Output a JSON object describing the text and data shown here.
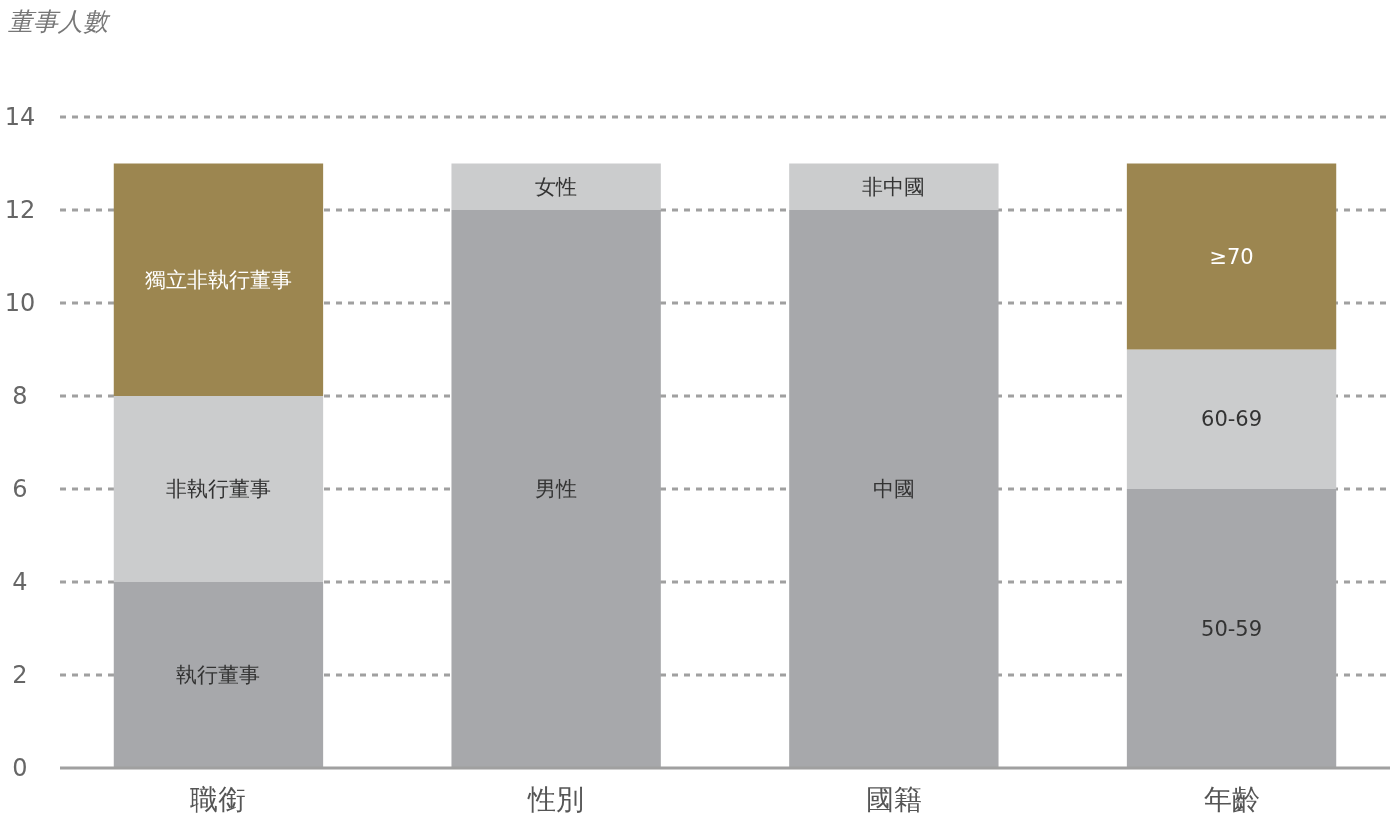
{
  "chart_data": {
    "type": "bar",
    "stacked": true,
    "ylabel": "董事人數",
    "categories": [
      "職銜",
      "性別",
      "國籍",
      "年齡"
    ],
    "series": [
      {
        "color": "#a7a8ab",
        "values": [
          4,
          12,
          12,
          6
        ],
        "value_labels": [
          "執行董事",
          "男性",
          "中國",
          "50-59"
        ]
      },
      {
        "color": "#cbcccd",
        "values": [
          4,
          1,
          1,
          3
        ],
        "value_labels": [
          "非執行董事",
          "女性",
          "非中國",
          "60-69"
        ]
      },
      {
        "color": "#9c8650",
        "values": [
          5,
          null,
          null,
          4
        ],
        "value_labels": [
          "獨立非執行董事",
          null,
          null,
          "≥70"
        ]
      }
    ],
    "ylim": [
      0,
      14
    ],
    "yticks": [
      0,
      2,
      4,
      6,
      8,
      10,
      12,
      14
    ],
    "grid": "y"
  }
}
